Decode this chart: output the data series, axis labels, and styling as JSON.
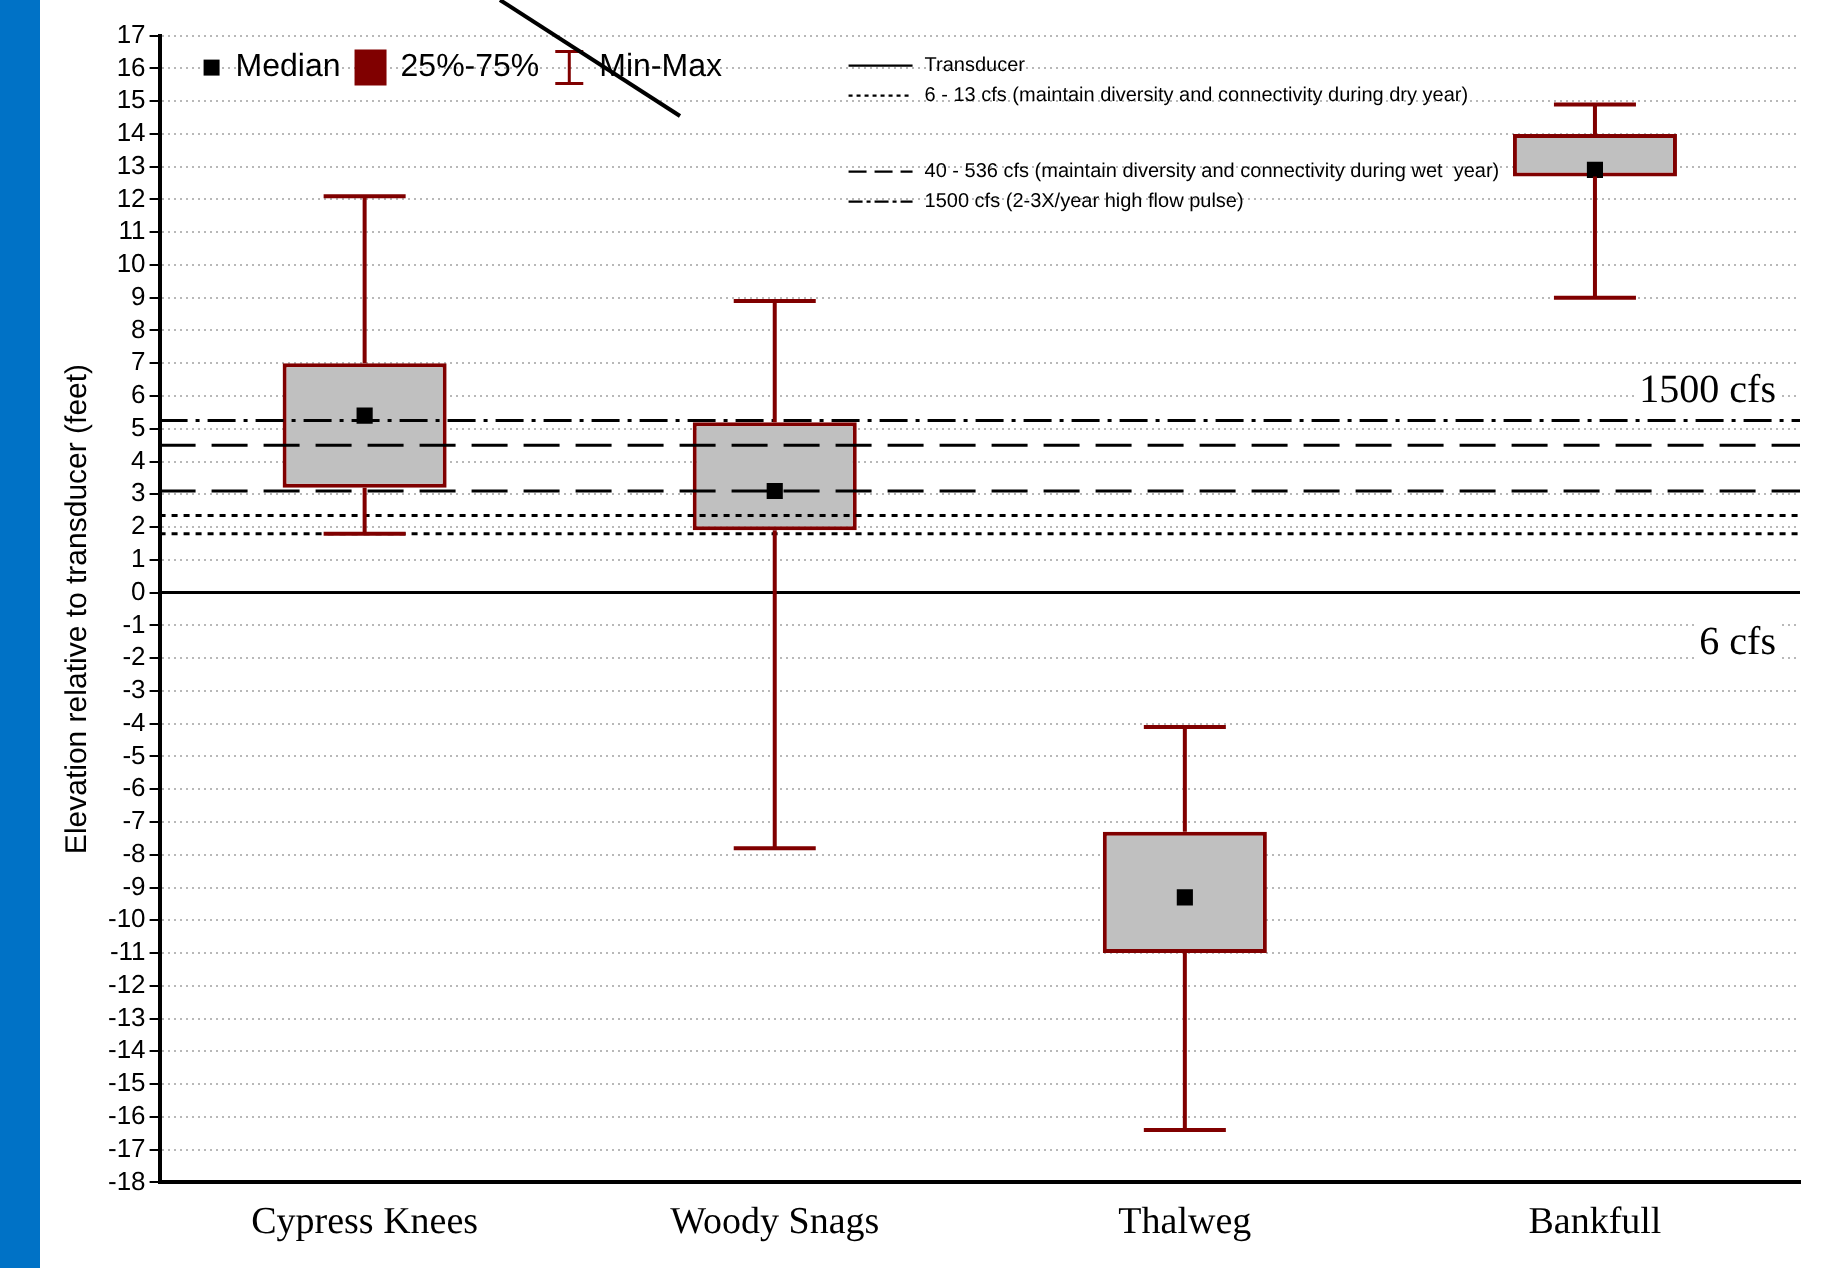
{
  "chart_data": {
    "type": "box",
    "ylabel": "Elevation relative to transducer (feet)",
    "categories": [
      "Cypress Knees",
      "Woody Snags",
      "Thalweg",
      "Bankfull"
    ],
    "series": [
      {
        "type": "box",
        "name": "25%-75%",
        "color": "#800000",
        "boxes": [
          {
            "low": 1.8,
            "q1": 3.2,
            "q3": 7.0,
            "high": 12.1
          },
          {
            "low": -7.8,
            "q1": 1.9,
            "q3": 5.2,
            "high": 8.9
          },
          {
            "low": -16.4,
            "q1": -11.0,
            "q3": -7.3,
            "high": -4.1
          },
          {
            "low": 9.0,
            "q1": 12.7,
            "q3": 14.0,
            "high": 14.9
          }
        ]
      },
      {
        "type": "scatter",
        "name": "Median",
        "color": "#000000",
        "marker": "square",
        "x": [
          "Cypress Knees",
          "Woody Snags",
          "Thalweg",
          "Bankfull"
        ],
        "values": [
          5.4,
          3.1,
          -9.3,
          12.9
        ]
      }
    ],
    "ylim": [
      -18,
      17
    ],
    "yticks": [
      -18,
      -17,
      -16,
      -15,
      -14,
      -13,
      -12,
      -11,
      -10,
      -9,
      -8,
      -7,
      -6,
      -5,
      -4,
      -3,
      -2,
      -1,
      0,
      1,
      2,
      3,
      4,
      5,
      6,
      7,
      8,
      9,
      10,
      11,
      12,
      13,
      14,
      15,
      16,
      17
    ],
    "grid": "y",
    "legend": "top left",
    "ref_lines": [
      {
        "axis": "y",
        "value": 0,
        "label": "Transducer",
        "line_style": "solid",
        "color": "#000000"
      },
      {
        "axis": "y",
        "value": 2.35,
        "label": "6 - 13 cfs (maintain diversity and connectivity during dry year)",
        "line_style": "dotted",
        "color": "#000000"
      },
      {
        "axis": "y",
        "value": 1.8,
        "line_style": "dotted",
        "color": "#000000"
      },
      {
        "axis": "y",
        "value": 4.5,
        "label": "40 - 536 cfs (maintain diversity and connectivity during wet  year)",
        "line_style": "dashed",
        "color": "#000000"
      },
      {
        "axis": "y",
        "value": 3.1,
        "line_style": "dashed",
        "color": "#000000"
      },
      {
        "axis": "y",
        "value": 5.25,
        "label": "1500 cfs (2-3X/year high flow pulse)",
        "line_style": "dashdot",
        "color": "#000000"
      }
    ],
    "annotations": [
      "Min-Max",
      "1500 cfs",
      "6 cfs"
    ]
  }
}
